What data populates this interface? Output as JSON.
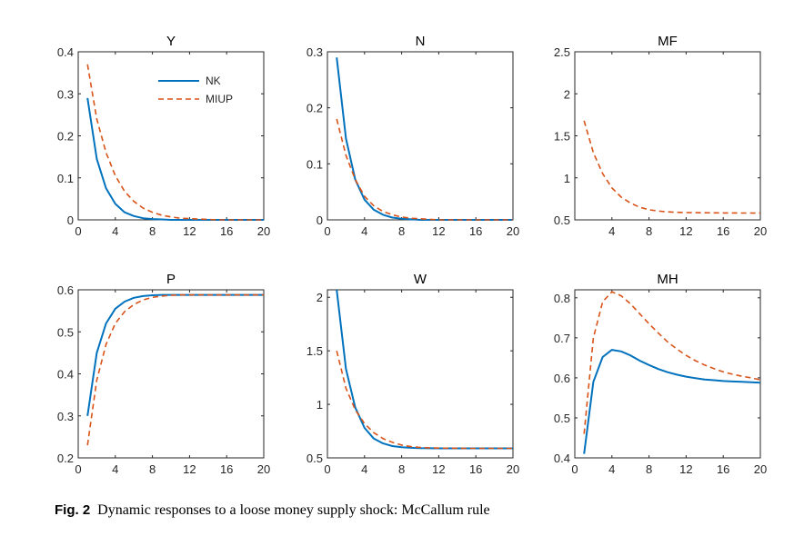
{
  "figure": {
    "caption_label": "Fig. 2",
    "caption_text": "Dynamic responses to a loose money supply shock: McCallum rule"
  },
  "colors": {
    "NK": "#0072BD",
    "MIUP": "#D95319",
    "axis": "#262626"
  },
  "chart_data": [
    {
      "type": "line",
      "title": "Y",
      "xlim": [
        0,
        20
      ],
      "ylim": [
        0,
        0.4
      ],
      "xticks": [
        0,
        4,
        8,
        12,
        16,
        20
      ],
      "yticks": [
        0,
        0.1,
        0.2,
        0.3,
        0.4
      ],
      "legend": {
        "position": "top-right",
        "entries": [
          "NK",
          "MIUP"
        ]
      },
      "series": [
        {
          "name": "NK",
          "style": "solid",
          "x": [
            1,
            2,
            3,
            4,
            5,
            6,
            7,
            8,
            9,
            10,
            11,
            12,
            13,
            14,
            15,
            16,
            17,
            18,
            19,
            20
          ],
          "y": [
            0.29,
            0.145,
            0.075,
            0.038,
            0.018,
            0.009,
            0.004,
            0.002,
            0.001,
            0,
            0,
            0,
            0,
            0,
            0,
            0,
            0,
            0,
            0,
            0
          ]
        },
        {
          "name": "MIUP",
          "style": "dashed",
          "x": [
            1,
            2,
            3,
            4,
            5,
            6,
            7,
            8,
            9,
            10,
            11,
            12,
            13,
            14,
            15,
            16,
            17,
            18,
            19,
            20
          ],
          "y": [
            0.37,
            0.24,
            0.16,
            0.105,
            0.068,
            0.044,
            0.028,
            0.018,
            0.011,
            0.007,
            0.004,
            0.003,
            0.002,
            0.001,
            0,
            0,
            0,
            0,
            0,
            0
          ]
        }
      ]
    },
    {
      "type": "line",
      "title": "N",
      "xlim": [
        0,
        20
      ],
      "ylim": [
        0,
        0.3
      ],
      "xticks": [
        0,
        4,
        8,
        12,
        16,
        20
      ],
      "yticks": [
        0,
        0.1,
        0.2,
        0.3
      ],
      "series": [
        {
          "name": "NK",
          "style": "solid",
          "x": [
            1,
            2,
            3,
            4,
            5,
            6,
            7,
            8,
            9,
            10,
            11,
            12,
            13,
            14,
            15,
            16,
            17,
            18,
            19,
            20
          ],
          "y": [
            0.29,
            0.145,
            0.072,
            0.036,
            0.018,
            0.009,
            0.004,
            0.002,
            0.001,
            0,
            0,
            0,
            0,
            0,
            0,
            0,
            0,
            0,
            0,
            0
          ]
        },
        {
          "name": "MIUP",
          "style": "dashed",
          "x": [
            1,
            2,
            3,
            4,
            5,
            6,
            7,
            8,
            9,
            10,
            11,
            12,
            13,
            14,
            15,
            16,
            17,
            18,
            19,
            20
          ],
          "y": [
            0.18,
            0.115,
            0.072,
            0.042,
            0.025,
            0.015,
            0.009,
            0.005,
            0.003,
            0.002,
            0.001,
            0,
            0,
            0,
            0,
            0,
            0,
            0,
            0,
            0
          ]
        }
      ]
    },
    {
      "type": "line",
      "title": "MF",
      "xlim": [
        0,
        20
      ],
      "ylim": [
        0.5,
        2.5
      ],
      "xticks": [
        4,
        8,
        12,
        16,
        20
      ],
      "yticks": [
        0.5,
        1,
        1.5,
        2,
        2.5
      ],
      "series": [
        {
          "name": "MIUP",
          "style": "dashed",
          "x": [
            1,
            2,
            3,
            4,
            5,
            6,
            7,
            8,
            9,
            10,
            11,
            12,
            13,
            14,
            15,
            16,
            17,
            18,
            19,
            20
          ],
          "y": [
            1.68,
            1.3,
            1.05,
            0.88,
            0.77,
            0.7,
            0.65,
            0.62,
            0.605,
            0.595,
            0.59,
            0.587,
            0.585,
            0.584,
            0.583,
            0.582,
            0.582,
            0.581,
            0.581,
            0.58
          ]
        }
      ]
    },
    {
      "type": "line",
      "title": "P",
      "xlim": [
        0,
        20
      ],
      "ylim": [
        0.2,
        0.6
      ],
      "xticks": [
        0,
        4,
        8,
        12,
        16,
        20
      ],
      "yticks": [
        0.2,
        0.3,
        0.4,
        0.5,
        0.6
      ],
      "series": [
        {
          "name": "NK",
          "style": "solid",
          "x": [
            1,
            2,
            3,
            4,
            5,
            6,
            7,
            8,
            9,
            10,
            11,
            12,
            13,
            14,
            15,
            16,
            17,
            18,
            19,
            20
          ],
          "y": [
            0.3,
            0.45,
            0.52,
            0.555,
            0.572,
            0.581,
            0.585,
            0.587,
            0.588,
            0.588,
            0.588,
            0.588,
            0.588,
            0.588,
            0.588,
            0.588,
            0.588,
            0.588,
            0.588,
            0.588
          ]
        },
        {
          "name": "MIUP",
          "style": "dashed",
          "x": [
            1,
            2,
            3,
            4,
            5,
            6,
            7,
            8,
            9,
            10,
            11,
            12,
            13,
            14,
            15,
            16,
            17,
            18,
            19,
            20
          ],
          "y": [
            0.23,
            0.385,
            0.47,
            0.52,
            0.548,
            0.565,
            0.576,
            0.582,
            0.585,
            0.587,
            0.588,
            0.588,
            0.588,
            0.588,
            0.588,
            0.588,
            0.588,
            0.588,
            0.588,
            0.588
          ]
        }
      ]
    },
    {
      "type": "line",
      "title": "W",
      "xlim": [
        0,
        20
      ],
      "ylim": [
        0.5,
        2.07
      ],
      "xticks": [
        0,
        4,
        8,
        12,
        16,
        20
      ],
      "yticks": [
        0.5,
        1,
        1.5,
        2
      ],
      "series": [
        {
          "name": "NK",
          "style": "solid",
          "x": [
            1,
            2,
            3,
            4,
            5,
            6,
            7,
            8,
            9,
            10,
            11,
            12,
            13,
            14,
            15,
            16,
            17,
            18,
            19,
            20
          ],
          "y": [
            2.07,
            1.33,
            0.97,
            0.78,
            0.68,
            0.635,
            0.61,
            0.6,
            0.594,
            0.591,
            0.59,
            0.589,
            0.589,
            0.589,
            0.589,
            0.589,
            0.589,
            0.589,
            0.589,
            0.589
          ]
        },
        {
          "name": "MIUP",
          "style": "dashed",
          "x": [
            1,
            2,
            3,
            4,
            5,
            6,
            7,
            8,
            9,
            10,
            11,
            12,
            13,
            14,
            15,
            16,
            17,
            18,
            19,
            20
          ],
          "y": [
            1.5,
            1.15,
            0.95,
            0.82,
            0.735,
            0.68,
            0.645,
            0.62,
            0.605,
            0.598,
            0.594,
            0.592,
            0.591,
            0.59,
            0.589,
            0.589,
            0.589,
            0.589,
            0.589,
            0.589
          ]
        }
      ]
    },
    {
      "type": "line",
      "title": "MH",
      "xlim": [
        0,
        20
      ],
      "ylim": [
        0.4,
        0.82
      ],
      "xticks": [
        0,
        4,
        8,
        12,
        16,
        20
      ],
      "yticks": [
        0.4,
        0.5,
        0.6,
        0.7,
        0.8
      ],
      "series": [
        {
          "name": "NK",
          "style": "solid",
          "x": [
            1,
            2,
            3,
            4,
            5,
            6,
            7,
            8,
            9,
            10,
            11,
            12,
            13,
            14,
            15,
            16,
            17,
            18,
            19,
            20
          ],
          "y": [
            0.41,
            0.59,
            0.652,
            0.67,
            0.666,
            0.656,
            0.643,
            0.632,
            0.622,
            0.614,
            0.608,
            0.603,
            0.599,
            0.596,
            0.594,
            0.592,
            0.591,
            0.59,
            0.589,
            0.588
          ]
        },
        {
          "name": "MIUP",
          "style": "dashed",
          "x": [
            1,
            2,
            3,
            4,
            5,
            6,
            7,
            8,
            9,
            10,
            11,
            12,
            13,
            14,
            15,
            16,
            17,
            18,
            19,
            20
          ],
          "y": [
            0.46,
            0.7,
            0.79,
            0.815,
            0.805,
            0.785,
            0.76,
            0.735,
            0.712,
            0.69,
            0.672,
            0.656,
            0.643,
            0.632,
            0.623,
            0.615,
            0.609,
            0.604,
            0.6,
            0.595
          ]
        }
      ]
    }
  ]
}
